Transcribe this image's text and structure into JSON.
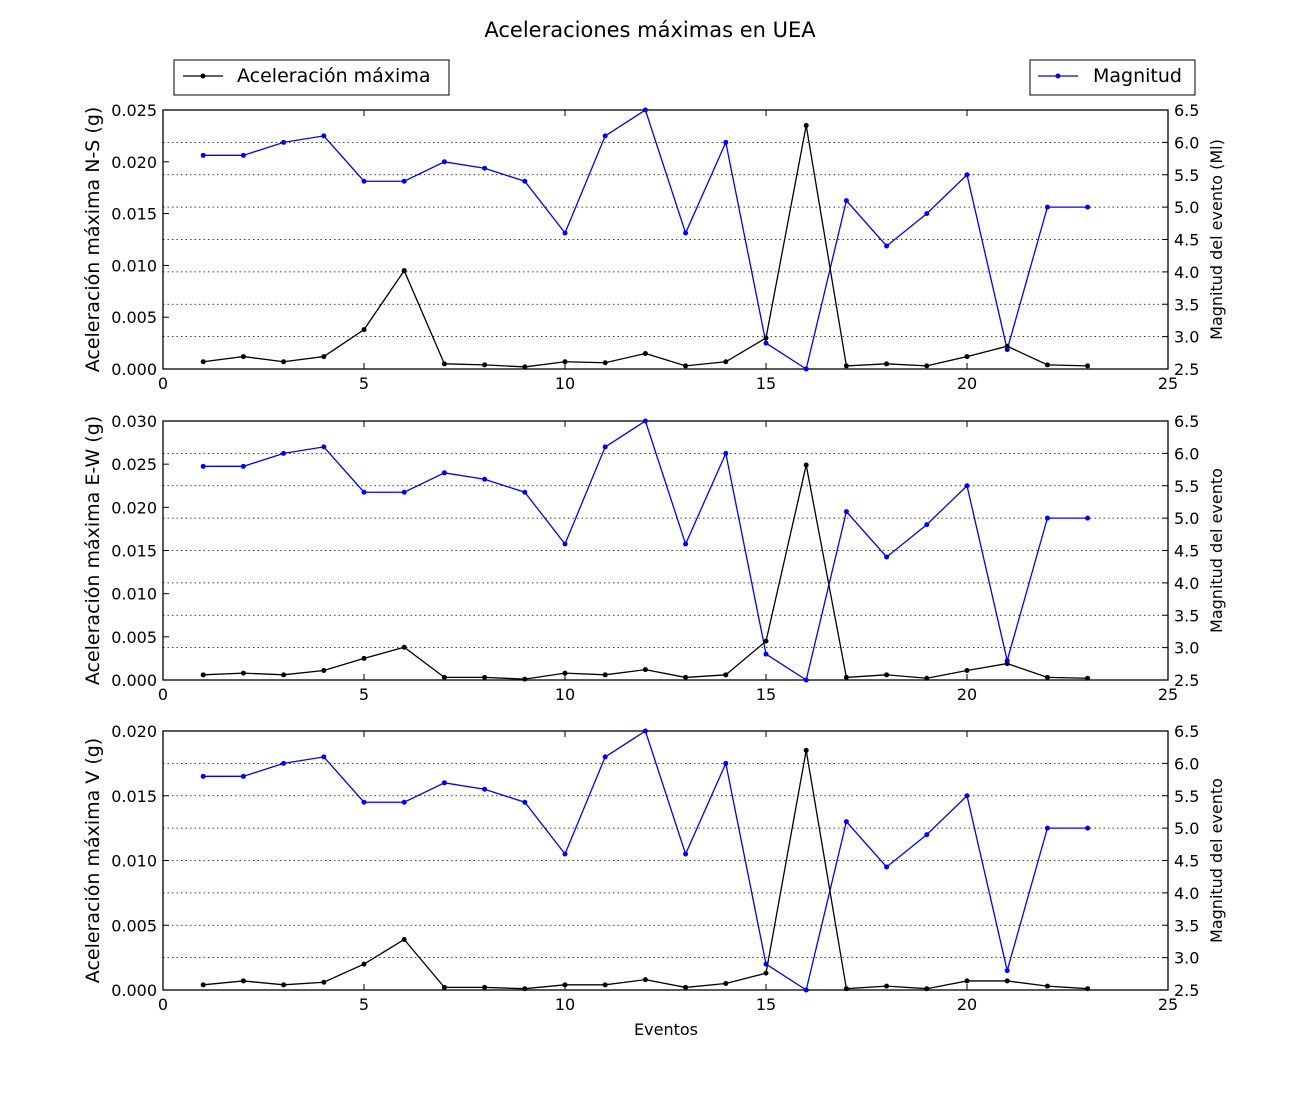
{
  "chart_data": {
    "type": "line",
    "title": "Aceleraciones máximas en UEA",
    "xlabel": "Eventos",
    "xlim": [
      0,
      25
    ],
    "xticks": [
      0,
      5,
      10,
      15,
      20,
      25
    ],
    "legend": {
      "left": {
        "label": "Aceleración máxima",
        "placement": "top-left",
        "color": "#000000"
      },
      "right": {
        "label": "Magnitud",
        "placement": "top-right",
        "color": "#0000ff"
      }
    },
    "x": [
      1,
      2,
      3,
      4,
      5,
      6,
      7,
      8,
      9,
      10,
      11,
      12,
      13,
      14,
      15,
      16,
      17,
      18,
      19,
      20,
      21,
      22,
      23
    ],
    "magnitude": {
      "name": "Magnitud",
      "color": "#0000ff",
      "values": [
        5.8,
        5.8,
        6.0,
        6.1,
        5.4,
        5.4,
        5.7,
        5.6,
        5.4,
        4.6,
        6.1,
        6.5,
        4.6,
        6.0,
        2.9,
        2.5,
        5.1,
        4.4,
        4.9,
        5.5,
        2.8,
        5.0,
        5.0
      ]
    },
    "panels": [
      {
        "ylabel": "Aceleración máxima N-S (g)",
        "ylabel_right": "Magnitud del evento (Ml)",
        "ylim": [
          0,
          0.025
        ],
        "yticks": [
          "0.000",
          "0.005",
          "0.010",
          "0.015",
          "0.020",
          "0.025"
        ],
        "ylim_right": [
          2.5,
          6.5
        ],
        "yticks_right": [
          "2.5",
          "3.0",
          "3.5",
          "4.0",
          "4.5",
          "5.0",
          "5.5",
          "6.0",
          "6.5"
        ],
        "grid": "right-axis dotted",
        "acceleration": [
          0.0007,
          0.0012,
          0.0007,
          0.0012,
          0.0038,
          0.0095,
          0.0005,
          0.0004,
          0.0002,
          0.0007,
          0.0006,
          0.0015,
          0.0003,
          0.0007,
          0.003,
          0.0235,
          0.0003,
          0.0005,
          0.0003,
          0.0012,
          0.0022,
          0.0004,
          0.0003
        ]
      },
      {
        "ylabel": "Aceleración máxima E-W (g)",
        "ylabel_right": "Magnitud del evento",
        "ylim": [
          0,
          0.03
        ],
        "yticks": [
          "0.000",
          "0.005",
          "0.010",
          "0.015",
          "0.020",
          "0.025",
          "0.030"
        ],
        "ylim_right": [
          2.5,
          6.5
        ],
        "yticks_right": [
          "2.5",
          "3.0",
          "3.5",
          "4.0",
          "4.5",
          "5.0",
          "5.5",
          "6.0",
          "6.5"
        ],
        "grid": "right-axis dotted",
        "acceleration": [
          0.0006,
          0.0008,
          0.0006,
          0.0011,
          0.0025,
          0.0038,
          0.0003,
          0.0003,
          0.0001,
          0.0008,
          0.0006,
          0.0012,
          0.0003,
          0.0006,
          0.0045,
          0.0249,
          0.0003,
          0.0006,
          0.0002,
          0.0011,
          0.0019,
          0.0003,
          0.0002
        ]
      },
      {
        "ylabel": "Aceleración máxima V (g)",
        "ylabel_right": "Magnitud del evento",
        "ylim": [
          0,
          0.02
        ],
        "yticks": [
          "0.000",
          "0.005",
          "0.010",
          "0.015",
          "0.020"
        ],
        "ylim_right": [
          2.5,
          6.5
        ],
        "yticks_right": [
          "2.5",
          "3.0",
          "3.5",
          "4.0",
          "4.5",
          "5.0",
          "5.5",
          "6.0",
          "6.5"
        ],
        "grid": "right-axis dotted",
        "acceleration": [
          0.0004,
          0.0007,
          0.0004,
          0.0006,
          0.002,
          0.0039,
          0.0002,
          0.0002,
          0.0001,
          0.0004,
          0.0004,
          0.0008,
          0.0002,
          0.0005,
          0.0013,
          0.0185,
          0.0001,
          0.0003,
          0.0001,
          0.0007,
          0.0007,
          0.0003,
          0.0001
        ]
      }
    ]
  }
}
